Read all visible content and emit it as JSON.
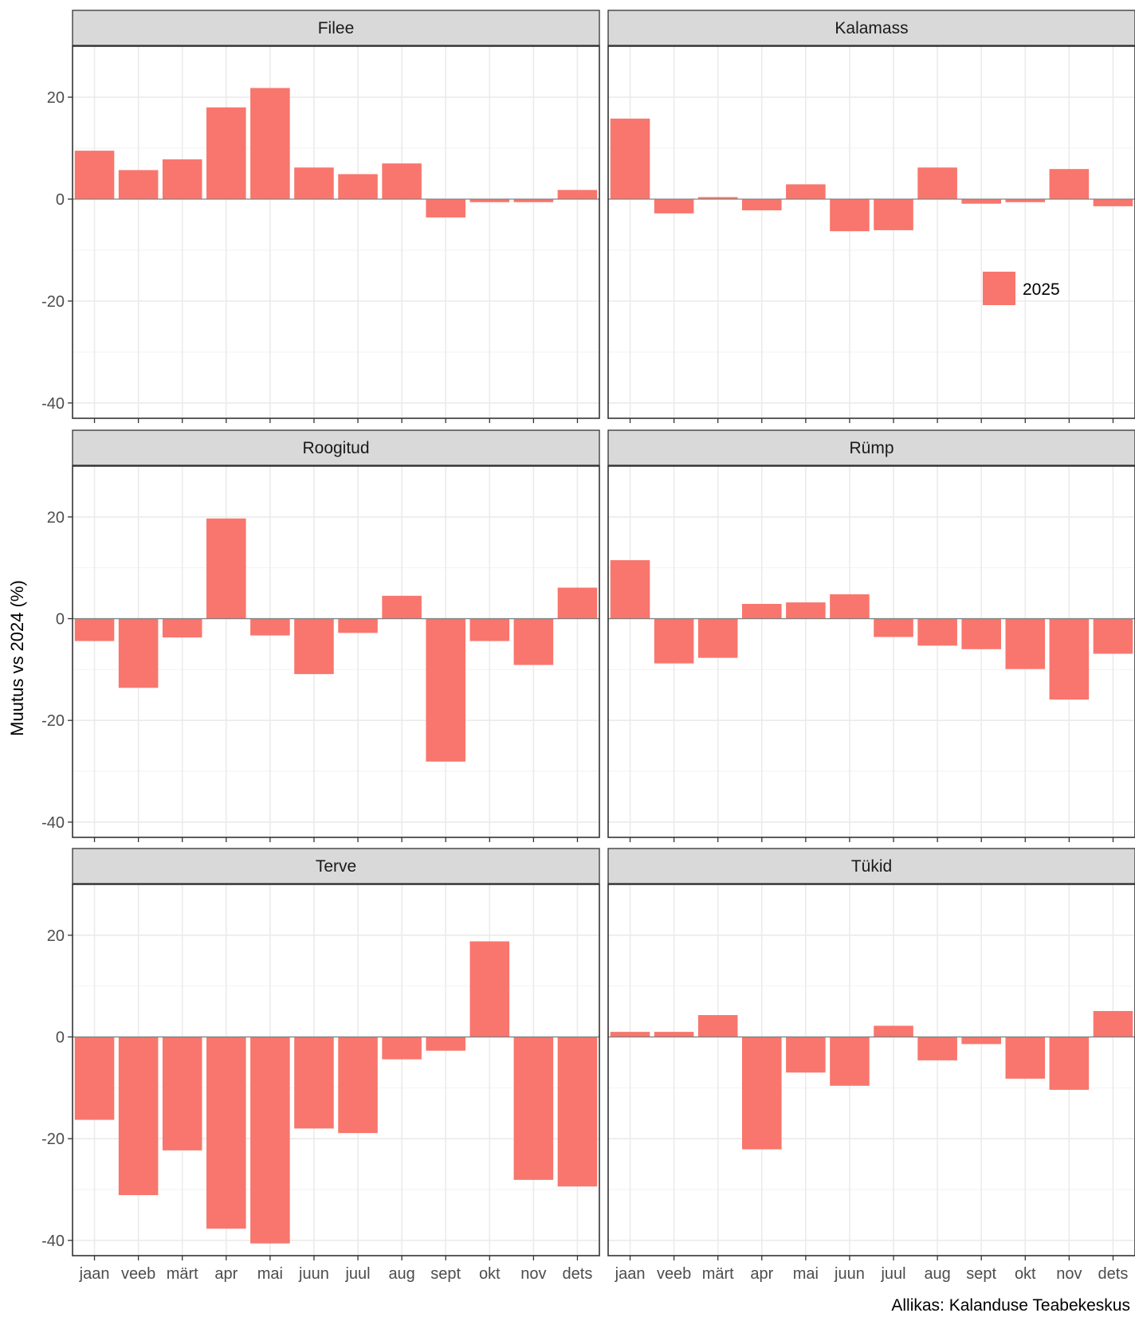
{
  "chart_data": {
    "type": "bar",
    "facet_layout": "3 rows x 2 columns",
    "ylabel": "Muutus vs 2024 (%)",
    "ylim": [
      -43,
      30
    ],
    "y_ticks": [
      20,
      0,
      -20,
      -40
    ],
    "y_tick_labels": [
      "20",
      "0",
      "-20",
      "-40"
    ],
    "categories": [
      "jaan",
      "veeb",
      "märt",
      "apr",
      "mai",
      "juun",
      "juul",
      "aug",
      "sept",
      "okt",
      "nov",
      "dets"
    ],
    "legend": {
      "placement": "inside top-right panel",
      "entries": [
        {
          "label": "2025",
          "color": "#F8766D"
        }
      ]
    },
    "caption": "Allikas: Kalanduse Teabekeskus",
    "grid": true,
    "colors": {
      "bar": "#F8766D",
      "strip_background": "#D9D9D9",
      "panel_border": "#333333",
      "grid": "#EBEBEB"
    },
    "panels": [
      {
        "title": "Filee",
        "values": [
          9.5,
          5.7,
          7.8,
          18.0,
          21.8,
          6.2,
          4.9,
          7.0,
          -3.6,
          -0.6,
          -0.6,
          1.8
        ]
      },
      {
        "title": "Kalamass",
        "values": [
          15.8,
          -2.8,
          0.4,
          -2.2,
          2.9,
          -6.3,
          -6.1,
          6.2,
          -0.9,
          -0.6,
          5.9,
          -1.4
        ]
      },
      {
        "title": "Roogitud",
        "values": [
          -4.4,
          -13.6,
          -3.7,
          19.7,
          -3.3,
          -10.9,
          -2.8,
          4.5,
          -28.1,
          -4.4,
          -9.1,
          6.1
        ]
      },
      {
        "title": "Rümp",
        "values": [
          11.5,
          -8.8,
          -7.7,
          2.9,
          3.2,
          4.8,
          -3.6,
          -5.3,
          -6.0,
          -9.9,
          -15.9,
          -6.9
        ]
      },
      {
        "title": "Terve",
        "values": [
          -16.3,
          -31.1,
          -22.3,
          -37.7,
          -40.6,
          -18.0,
          -18.9,
          -4.4,
          -2.7,
          18.8,
          -28.1,
          -29.4
        ]
      },
      {
        "title": "Tükid",
        "values": [
          1.0,
          1.0,
          4.3,
          -22.1,
          -7.0,
          -9.6,
          2.2,
          -4.6,
          -1.4,
          -8.2,
          -10.4,
          5.1
        ]
      }
    ]
  }
}
